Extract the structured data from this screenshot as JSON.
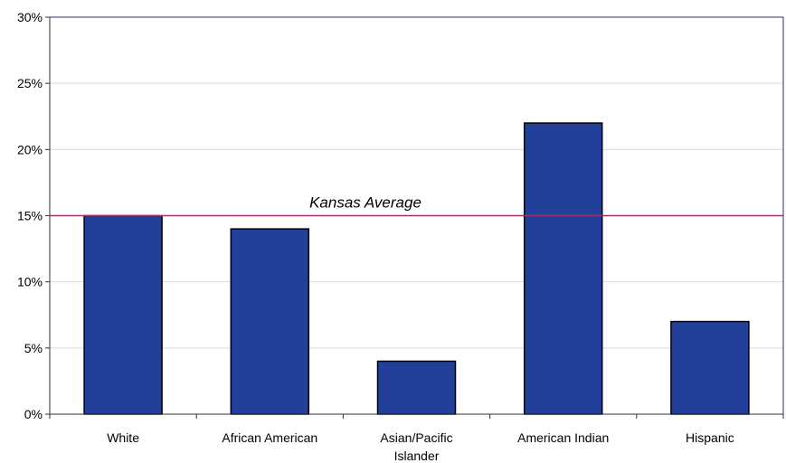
{
  "chart_data": {
    "type": "bar",
    "categories": [
      "White",
      "African American",
      "Asian/Pacific Islander",
      "American Indian",
      "Hispanic"
    ],
    "category_label_lines": [
      [
        "White"
      ],
      [
        "African American"
      ],
      [
        "Asian/Pacific",
        "Islander"
      ],
      [
        "American Indian"
      ],
      [
        "Hispanic"
      ]
    ],
    "values": [
      15,
      14,
      4,
      22,
      7
    ],
    "ylim": [
      0,
      30
    ],
    "ytick_values": [
      0,
      5,
      10,
      15,
      20,
      25,
      30
    ],
    "ytick_labels": [
      "0%",
      "5%",
      "10%",
      "15%",
      "20%",
      "25%",
      "30%"
    ],
    "reference_line": {
      "value": 15,
      "label": "Kansas Average",
      "color": "#993366"
    },
    "bar_color": "#22409A",
    "grid": true,
    "title": "",
    "xlabel": "",
    "ylabel": ""
  }
}
